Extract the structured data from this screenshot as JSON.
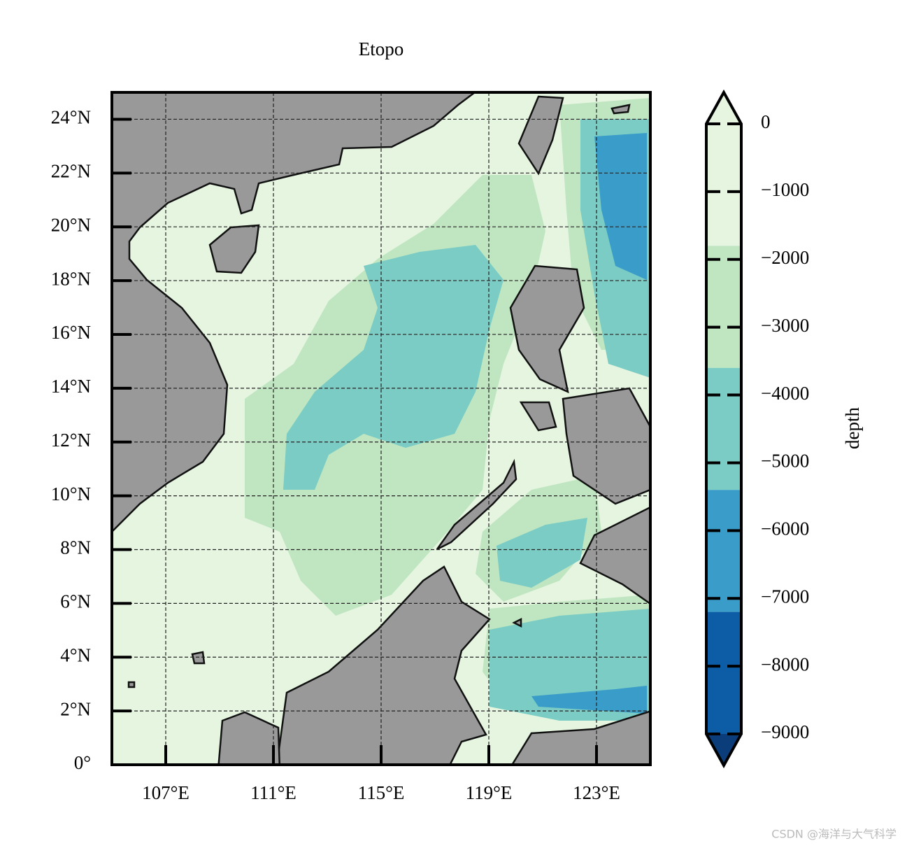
{
  "title": "Etopo",
  "map": {
    "xlim": [
      105,
      125
    ],
    "ylim": [
      0,
      25
    ],
    "xticks": [
      {
        "value": 107,
        "label": "107°E"
      },
      {
        "value": 111,
        "label": "111°E"
      },
      {
        "value": 115,
        "label": "115°E"
      },
      {
        "value": 119,
        "label": "119°E"
      },
      {
        "value": 123,
        "label": "123°E"
      }
    ],
    "yticks": [
      {
        "value": 0,
        "label": "0°"
      },
      {
        "value": 2,
        "label": "2°N"
      },
      {
        "value": 4,
        "label": "4°N"
      },
      {
        "value": 6,
        "label": "6°N"
      },
      {
        "value": 8,
        "label": "8°N"
      },
      {
        "value": 10,
        "label": "10°N"
      },
      {
        "value": 12,
        "label": "12°N"
      },
      {
        "value": 14,
        "label": "14°N"
      },
      {
        "value": 16,
        "label": "16°N"
      },
      {
        "value": 18,
        "label": "18°N"
      },
      {
        "value": 20,
        "label": "20°N"
      },
      {
        "value": 22,
        "label": "22°N"
      },
      {
        "value": 24,
        "label": "24°N"
      }
    ],
    "grid": true,
    "land_color": "#999999"
  },
  "colorbar": {
    "label": "depth",
    "lim": [
      -9000,
      0
    ],
    "levels": [
      0,
      -1800,
      -3600,
      -5400,
      -7200,
      -9000
    ],
    "colors": [
      "#e5f5e0",
      "#bfe6c1",
      "#7accc4",
      "#3a9cc8",
      "#0c5da5"
    ],
    "extend_colors": [
      "#e5f5e0",
      "#0a3d7a"
    ],
    "ticks": [
      0,
      {
        "value": -1000,
        "label": "−1000"
      },
      {
        "value": -2000,
        "label": "−2000"
      },
      {
        "value": -3000,
        "label": "−3000"
      },
      {
        "value": -4000,
        "label": "−4000"
      },
      {
        "value": -5000,
        "label": "−5000"
      },
      {
        "value": -6000,
        "label": "−6000"
      },
      {
        "value": -7000,
        "label": "−7000"
      },
      {
        "value": -8000,
        "label": "−8000"
      },
      {
        "value": -9000,
        "label": "−9000"
      }
    ]
  },
  "watermark": "CSDN @海洋与大气科学"
}
